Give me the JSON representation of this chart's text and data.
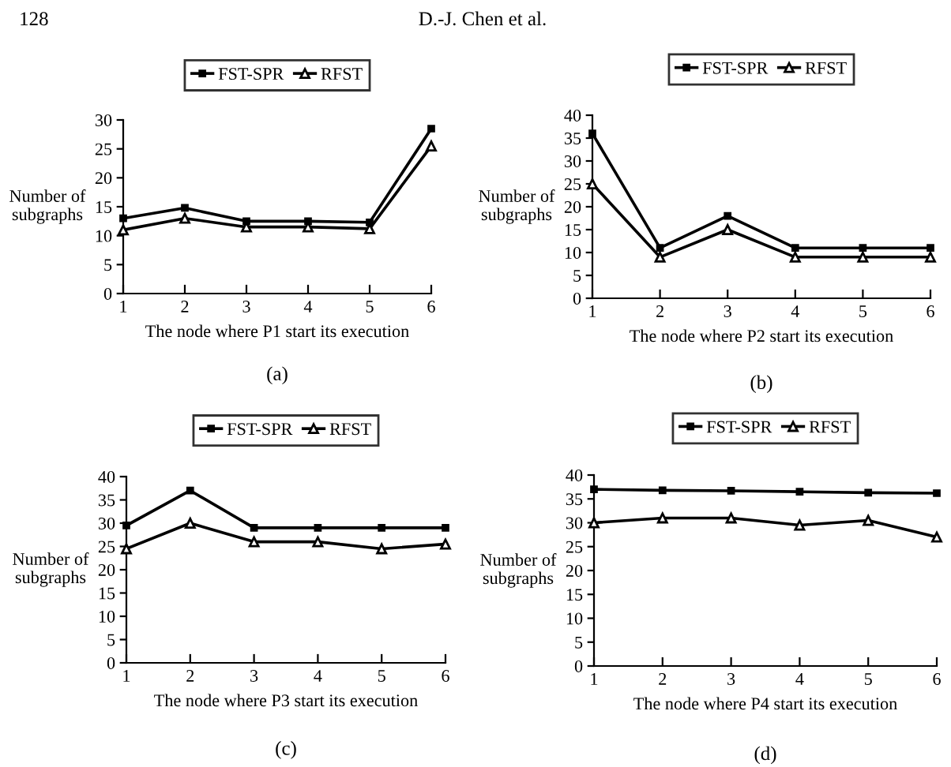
{
  "chart_data": [
    {
      "type": "line",
      "xlabel": "The node where P1 start its execution",
      "ylabel": "Number of\nsubgraphs",
      "x": [
        1,
        2,
        3,
        4,
        5,
        6
      ],
      "xlim": [
        1,
        6
      ],
      "xticks": [
        1,
        2,
        3,
        4,
        5,
        6
      ],
      "ylim": [
        0,
        30
      ],
      "yticks": [
        0,
        5,
        10,
        15,
        20,
        25,
        30
      ],
      "grid": false,
      "legend": "top",
      "line_style": "solid",
      "annotations": [
        "128",
        "D.-J. Chen et al.",
        "(a)"
      ],
      "series": [
        {
          "name": "FST-SPR",
          "color": "#000000",
          "marker": "square",
          "values": [
            13,
            14.8,
            12.5,
            12.5,
            12.3,
            28.5
          ]
        },
        {
          "name": "RFST",
          "color": "#000000",
          "marker": "triangle",
          "values": [
            11,
            13,
            11.5,
            11.5,
            11.2,
            25.5
          ]
        }
      ]
    },
    {
      "type": "line",
      "xlabel": "The node where P2 start its execution",
      "ylabel": "Number of\nsubgraphs",
      "x": [
        1,
        2,
        3,
        4,
        5,
        6
      ],
      "xlim": [
        1,
        6
      ],
      "xticks": [
        1,
        2,
        3,
        4,
        5,
        6
      ],
      "ylim": [
        0,
        40
      ],
      "yticks": [
        0,
        5,
        10,
        15,
        20,
        25,
        30,
        35,
        40
      ],
      "grid": false,
      "legend": "top",
      "line_style": "solid",
      "annotations": [
        "(b)"
      ],
      "series": [
        {
          "name": "FST-SPR",
          "color": "#000000",
          "marker": "square",
          "values": [
            36,
            11,
            18,
            11,
            11,
            11
          ]
        },
        {
          "name": "RFST",
          "color": "#000000",
          "marker": "triangle",
          "values": [
            25,
            9,
            15,
            9,
            9,
            9
          ]
        }
      ]
    },
    {
      "type": "line",
      "xlabel": "The node where P3 start its execution",
      "ylabel": "Number of\nsubgraphs",
      "x": [
        1,
        2,
        3,
        4,
        5,
        6
      ],
      "xlim": [
        1,
        6
      ],
      "xticks": [
        1,
        2,
        3,
        4,
        5,
        6
      ],
      "ylim": [
        0,
        40
      ],
      "yticks": [
        0,
        5,
        10,
        15,
        20,
        25,
        30,
        35,
        40
      ],
      "grid": false,
      "legend": "top",
      "line_style": "solid",
      "annotations": [
        "(c)"
      ],
      "series": [
        {
          "name": "FST-SPR",
          "color": "#000000",
          "marker": "square",
          "values": [
            29.5,
            37,
            29,
            29,
            29,
            29
          ]
        },
        {
          "name": "RFST",
          "color": "#000000",
          "marker": "triangle",
          "values": [
            24.5,
            30,
            26,
            26,
            24.5,
            25.5
          ]
        }
      ]
    },
    {
      "type": "line",
      "xlabel": "The node where P4 start its execution",
      "ylabel": "Number of\nsubgraphs",
      "x": [
        1,
        2,
        3,
        4,
        5,
        6
      ],
      "xlim": [
        1,
        6
      ],
      "xticks": [
        1,
        2,
        3,
        4,
        5,
        6
      ],
      "ylim": [
        0,
        40
      ],
      "yticks": [
        0,
        5,
        10,
        15,
        20,
        25,
        30,
        35,
        40
      ],
      "grid": false,
      "legend": "top",
      "line_style": "solid",
      "annotations": [
        "(d)"
      ],
      "series": [
        {
          "name": "FST-SPR",
          "color": "#000000",
          "marker": "square",
          "values": [
            37,
            36.8,
            36.7,
            36.5,
            36.3,
            36.2
          ]
        },
        {
          "name": "RFST",
          "color": "#000000",
          "marker": "triangle",
          "values": [
            30,
            31,
            31,
            29.5,
            30.5,
            27
          ]
        }
      ]
    }
  ]
}
